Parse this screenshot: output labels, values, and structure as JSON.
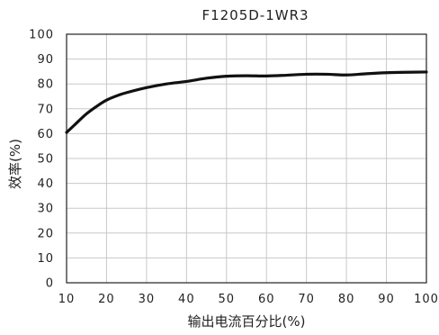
{
  "chart_data": {
    "type": "line",
    "title": "F1205D-1WR3",
    "xlabel": "输出电流百分比(%)",
    "ylabel": "效率(%)",
    "xlim": [
      10,
      100
    ],
    "ylim": [
      0,
      100
    ],
    "xticks": [
      10,
      20,
      30,
      40,
      50,
      60,
      70,
      80,
      90,
      100
    ],
    "yticks": [
      0,
      10,
      20,
      30,
      40,
      50,
      60,
      70,
      80,
      90,
      100
    ],
    "grid": true,
    "series": [
      {
        "x": [
          10,
          12,
          15,
          18,
          20,
          23,
          25,
          30,
          35,
          40,
          45,
          50,
          55,
          60,
          65,
          70,
          75,
          80,
          85,
          90,
          95,
          100
        ],
        "y": [
          60.5,
          63.5,
          68,
          71.5,
          73.5,
          75.5,
          76.5,
          78.5,
          80,
          81,
          82.3,
          83.1,
          83.3,
          83.2,
          83.5,
          83.9,
          83.9,
          83.6,
          84.1,
          84.5,
          84.7,
          84.8
        ]
      }
    ]
  }
}
